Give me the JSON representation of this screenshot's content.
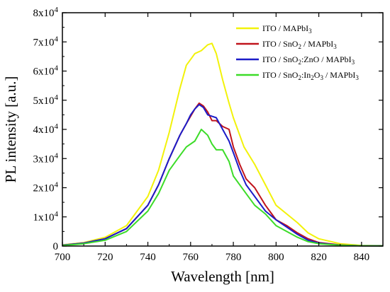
{
  "chart_data": {
    "type": "line",
    "xlabel": "Wavelength [nm]",
    "ylabel": "PL intensity [a.u.]",
    "xlim": [
      700,
      850
    ],
    "ylim": [
      0,
      80000
    ],
    "x_ticks": [
      700,
      720,
      740,
      760,
      780,
      800,
      820,
      840
    ],
    "y_ticks": [
      {
        "value": 0,
        "mantissa": "0",
        "exp": ""
      },
      {
        "value": 10000,
        "mantissa": "1x10",
        "exp": "4"
      },
      {
        "value": 20000,
        "mantissa": "2x10",
        "exp": "4"
      },
      {
        "value": 30000,
        "mantissa": "3x10",
        "exp": "4"
      },
      {
        "value": 40000,
        "mantissa": "4x10",
        "exp": "4"
      },
      {
        "value": 50000,
        "mantissa": "5x10",
        "exp": "4"
      },
      {
        "value": 60000,
        "mantissa": "6x10",
        "exp": "4"
      },
      {
        "value": 70000,
        "mantissa": "7x10",
        "exp": "4"
      },
      {
        "value": 80000,
        "mantissa": "8x10",
        "exp": "4"
      }
    ],
    "grid": false,
    "legend_position": "top-right",
    "series": [
      {
        "legend": [
          {
            "t": "ITO / MAPbI"
          },
          {
            "t": "3",
            "sub": true
          }
        ],
        "color": "#f2f20a",
        "x": [
          700,
          710,
          720,
          730,
          740,
          745,
          750,
          755,
          758,
          762,
          765,
          768,
          770,
          772,
          775,
          778,
          780,
          785,
          790,
          795,
          800,
          805,
          810,
          815,
          820,
          830,
          840,
          850
        ],
        "y": [
          400,
          1200,
          3000,
          7000,
          17000,
          26000,
          39000,
          54000,
          62000,
          66000,
          67000,
          69000,
          69500,
          66000,
          57000,
          49000,
          44000,
          34000,
          28000,
          21000,
          14000,
          11000,
          8000,
          4500,
          2500,
          800,
          200,
          100
        ]
      },
      {
        "legend": [
          {
            "t": "ITO / SnO"
          },
          {
            "t": "2",
            "sub": true
          },
          {
            "t": " / MAPbI"
          },
          {
            "t": "3",
            "sub": true
          }
        ],
        "color": "#c0141c",
        "x": [
          700,
          710,
          720,
          730,
          740,
          745,
          750,
          755,
          758,
          762,
          764,
          766,
          768,
          770,
          772,
          775,
          778,
          780,
          783,
          786,
          790,
          795,
          800,
          805,
          810,
          815,
          820,
          830,
          840,
          850
        ],
        "y": [
          300,
          1000,
          2500,
          6000,
          14000,
          21000,
          30000,
          38000,
          42000,
          47000,
          49000,
          48000,
          46000,
          43000,
          43000,
          41000,
          40000,
          34000,
          28000,
          23000,
          20000,
          14000,
          9000,
          7000,
          4500,
          2500,
          1200,
          400,
          100,
          50
        ]
      },
      {
        "legend": [
          {
            "t": "ITO / SnO"
          },
          {
            "t": "2",
            "sub": true
          },
          {
            "t": ":ZnO / MAPbI"
          },
          {
            "t": "3",
            "sub": true
          }
        ],
        "color": "#1c1cc8",
        "x": [
          700,
          710,
          720,
          730,
          740,
          745,
          750,
          755,
          758,
          760,
          762,
          764,
          766,
          768,
          770,
          772,
          775,
          778,
          780,
          783,
          786,
          790,
          795,
          800,
          805,
          810,
          815,
          820,
          830,
          840,
          850
        ],
        "y": [
          300,
          1000,
          2500,
          6000,
          14000,
          21000,
          30000,
          38000,
          42000,
          45000,
          47000,
          48500,
          47500,
          45000,
          44500,
          44000,
          40000,
          36000,
          32000,
          26000,
          21000,
          17000,
          12000,
          9000,
          6500,
          4000,
          2000,
          1000,
          300,
          100,
          50
        ]
      },
      {
        "legend": [
          {
            "t": "ITO / SnO"
          },
          {
            "t": "2",
            "sub": true
          },
          {
            "t": ":In"
          },
          {
            "t": "2",
            "sub": true
          },
          {
            "t": "O"
          },
          {
            "t": "3",
            "sub": true
          },
          {
            "t": " / MAPbI"
          },
          {
            "t": "3",
            "sub": true
          }
        ],
        "color": "#3cdc28",
        "x": [
          700,
          710,
          720,
          730,
          740,
          745,
          750,
          755,
          758,
          762,
          765,
          768,
          770,
          772,
          775,
          778,
          780,
          783,
          786,
          790,
          795,
          800,
          805,
          810,
          815,
          820,
          830,
          840,
          850
        ],
        "y": [
          200,
          800,
          2000,
          5000,
          12000,
          18000,
          26000,
          31000,
          34000,
          36000,
          40000,
          38000,
          35000,
          33000,
          33000,
          29000,
          24000,
          21000,
          18000,
          14000,
          11000,
          7000,
          5000,
          3000,
          1500,
          800,
          300,
          100,
          50
        ]
      }
    ]
  }
}
